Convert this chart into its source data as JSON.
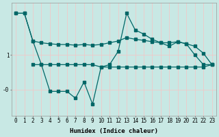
{
  "bg_color": "#c8e8e4",
  "grid_color": "#f0c8c8",
  "line_color": "#006666",
  "xlabel": "Humidex (Indice chaleur)",
  "xlim": [
    -0.5,
    23.5
  ],
  "ylim": [
    -0.75,
    2.5
  ],
  "yticks": [
    0.0,
    1.0
  ],
  "ytick_labels": [
    "-0",
    "1"
  ],
  "series1": {
    "x": [
      0,
      1,
      2,
      3,
      4,
      5,
      6,
      7,
      8,
      9,
      10,
      11,
      12,
      13,
      14,
      15,
      16,
      17,
      18,
      19,
      20,
      21,
      22,
      23
    ],
    "y": [
      2.2,
      2.2,
      1.4,
      1.35,
      1.32,
      1.3,
      1.3,
      1.28,
      1.3,
      1.28,
      1.3,
      1.35,
      1.4,
      1.5,
      1.45,
      1.42,
      1.38,
      1.35,
      1.35,
      1.38,
      1.32,
      1.25,
      1.05,
      0.72
    ]
  },
  "series2": {
    "x": [
      0,
      1,
      2,
      3,
      4,
      5,
      6,
      7,
      8,
      9,
      10,
      11,
      12,
      13,
      14,
      15,
      16,
      17,
      18,
      19,
      20,
      21,
      22,
      23
    ],
    "y": [
      2.2,
      2.2,
      1.4,
      0.72,
      -0.05,
      -0.05,
      -0.05,
      -0.25,
      0.22,
      -0.42,
      0.65,
      0.72,
      1.1,
      2.2,
      1.72,
      1.6,
      1.45,
      1.35,
      1.25,
      1.38,
      1.32,
      1.0,
      0.72,
      0.72
    ]
  },
  "series3": {
    "x": [
      2,
      3,
      4,
      5,
      6,
      7,
      8,
      9,
      10,
      11,
      12,
      13,
      14,
      15,
      16,
      17,
      18,
      19,
      20,
      21,
      22,
      23
    ],
    "y": [
      0.72,
      0.72,
      0.72,
      0.72,
      0.72,
      0.72,
      0.72,
      0.72,
      0.65,
      0.65,
      0.65,
      0.65,
      0.65,
      0.65,
      0.65,
      0.65,
      0.65,
      0.65,
      0.65,
      0.65,
      0.65,
      0.72
    ]
  },
  "xtick_labels": [
    "0",
    "1",
    "2",
    "3",
    "4",
    "5",
    "6",
    "7",
    "8",
    "9",
    "10",
    "11",
    "12",
    "13",
    "14",
    "15",
    "16",
    "17",
    "18",
    "19",
    "20",
    "21",
    "22",
    "23"
  ]
}
